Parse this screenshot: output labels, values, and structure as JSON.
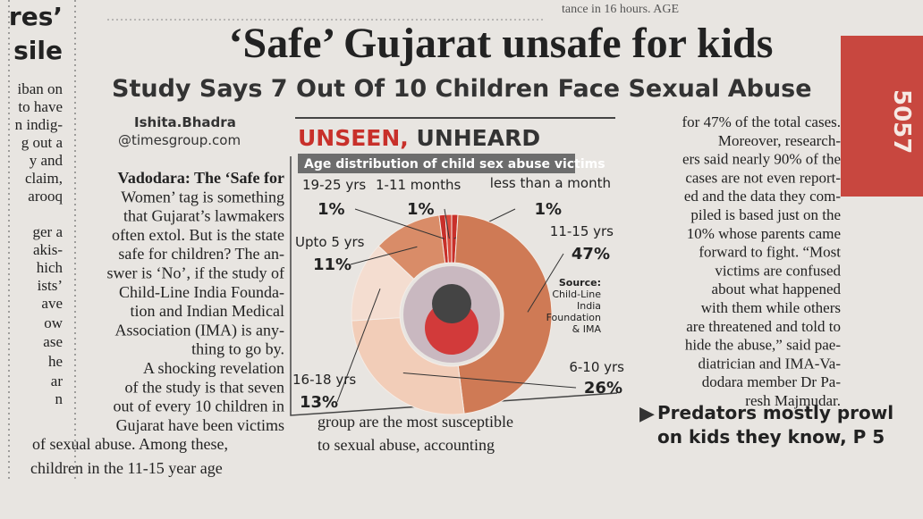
{
  "top_snippet": "tance in 16 hours. AGE",
  "side_strip": "5057",
  "left_fragments": [
    "res’",
    "sile",
    "iban on",
    "to have",
    "n indig-",
    "g out a",
    "y and",
    "claim,",
    "arooq",
    "ger a",
    "akis-",
    "hich",
    "ists’",
    "ave",
    "ow",
    "ase",
    "he",
    "ar",
    "n"
  ],
  "article": {
    "headline": "‘Safe’ Gujarat unsafe for kids",
    "subhead": "Study Says 7 Out Of 10 Children Face Sexual Abuse",
    "byline": [
      "Ishita.Bhadra",
      "@timesgroup.com"
    ],
    "column1": [
      "Vadodara: The ‘Safe for",
      "Women’ tag is something",
      "that Gujarat’s lawmakers",
      "often extol. But is the state",
      "safe for children? The an-",
      "swer is ‘No’, if the study of",
      "Child-Line India Founda-",
      "tion and Indian Medical",
      "Association (IMA) is any-",
      "thing to go by.",
      "A shocking revelation",
      "of the study is that seven",
      "out of every 10 children in",
      "Gujarat have been victims",
      "of sexual abuse. Among these,",
      "children in the 11-15 year age"
    ],
    "column2": [
      "group are the most susceptible",
      "to sexual abuse, accounting"
    ],
    "column3": [
      "for 47% of the total cases.",
      "Moreover, research-",
      "ers said nearly 90% of the",
      "cases are not even report-",
      "ed and the data they com-",
      "piled is based just on the",
      "10% whose parents came",
      "forward to fight. “Most",
      "victims are confused",
      "about what happened",
      "with them while others",
      "are threatened and told to",
      "hide the abuse,” said pae-",
      "diatrician and IMA-Va-",
      "dodara member Dr Pa-",
      "resh Majmudar."
    ],
    "pointer": [
      "Predators mostly prowl",
      "on kids they know, P 5"
    ]
  },
  "chart_data": {
    "type": "pie",
    "title": {
      "highlight": "UNSEEN,",
      "rest": "UNHEARD"
    },
    "subtitle": "Age distribution of child sex abuse victims",
    "categories": [
      "less than a month",
      "11-15 yrs",
      "6-10 yrs",
      "16-18 yrs",
      "Upto 5 yrs",
      "19-25 yrs",
      "1-11 months"
    ],
    "values": [
      1,
      47,
      26,
      13,
      11,
      1,
      1
    ],
    "value_labels": [
      "1%",
      "47%",
      "26%",
      "13%",
      "11%",
      "1%",
      "1%"
    ],
    "colors": [
      "#c8302a",
      "#cf7a55",
      "#f2cdb8",
      "#f4ddd0",
      "#d98c68",
      "#c8302a",
      "#d94a3c"
    ],
    "source": [
      "Source:",
      "Child-Line",
      "India",
      "Foundation",
      "& IMA"
    ]
  }
}
